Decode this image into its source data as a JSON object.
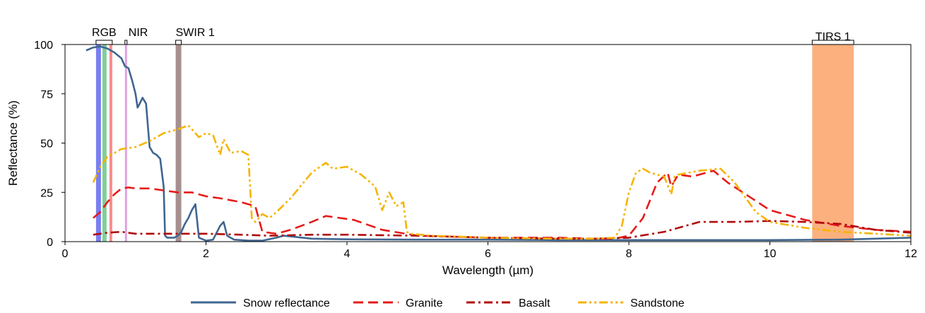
{
  "chart_data": {
    "type": "line",
    "xlabel": "Wavelength (µm)",
    "ylabel": "Reflectance (%)",
    "xlim": [
      0,
      12
    ],
    "ylim": [
      0,
      100
    ],
    "xticks": [
      0,
      2,
      4,
      6,
      8,
      10,
      12
    ],
    "yticks": [
      0,
      25,
      50,
      75,
      100
    ],
    "grid": false,
    "legend_position": "bottom",
    "bands": [
      {
        "name": "RGB",
        "range": [
          0.44,
          0.67
        ],
        "fills": [
          {
            "range": [
              0.44,
              0.51
            ],
            "color": "#7a7ef2"
          },
          {
            "range": [
              0.53,
              0.59
            ],
            "color": "#7fcf9a"
          },
          {
            "range": [
              0.63,
              0.67
            ],
            "color": "#f98a8a"
          }
        ]
      },
      {
        "name": "NIR",
        "range": [
          0.85,
          0.88
        ],
        "fills": [
          {
            "range": [
              0.85,
              0.88
            ],
            "color": "#e0a2e0"
          }
        ]
      },
      {
        "name": "SWIR 1",
        "range": [
          1.57,
          1.65
        ],
        "fills": [
          {
            "range": [
              1.57,
              1.65
            ],
            "color": "#a6908f"
          }
        ]
      },
      {
        "name": "TIRS 1",
        "range": [
          10.6,
          11.19
        ],
        "fills": [
          {
            "range": [
              10.6,
              11.19
            ],
            "color": "#fbb07e"
          }
        ]
      }
    ],
    "series": [
      {
        "name": "Snow reflectance",
        "color": "#3f6690",
        "dash": "solid",
        "x": [
          0.3,
          0.4,
          0.5,
          0.6,
          0.7,
          0.8,
          0.85,
          0.9,
          0.95,
          1.0,
          1.03,
          1.06,
          1.1,
          1.15,
          1.2,
          1.25,
          1.3,
          1.35,
          1.4,
          1.42,
          1.45,
          1.5,
          1.55,
          1.6,
          1.65,
          1.7,
          1.75,
          1.8,
          1.85,
          1.9,
          2.0,
          2.1,
          2.2,
          2.25,
          2.3,
          2.4,
          2.6,
          2.8,
          3.0,
          3.1,
          3.5,
          4,
          5,
          6,
          7,
          8,
          9,
          10,
          11,
          12
        ],
        "y": [
          97,
          98.5,
          99,
          98,
          96,
          93,
          89,
          88,
          82,
          75,
          68,
          70,
          73,
          70,
          48,
          45,
          44,
          42,
          28,
          3,
          2,
          2,
          2,
          3,
          5,
          9,
          12,
          16,
          19,
          2,
          0.5,
          1,
          8,
          10,
          3,
          1,
          0.5,
          0.5,
          2,
          3,
          1.5,
          1.2,
          1.0,
          1.0,
          0.8,
          0.8,
          0.8,
          0.8,
          1.0,
          2.0
        ]
      },
      {
        "name": "Granite",
        "color": "#e51b1b",
        "dash": "long-dash",
        "x": [
          0.4,
          0.5,
          0.6,
          0.7,
          0.8,
          0.9,
          1.0,
          1.2,
          1.4,
          1.6,
          1.8,
          2.0,
          2.2,
          2.5,
          2.7,
          2.8,
          3.0,
          3.2,
          3.5,
          3.7,
          3.9,
          4.1,
          4.5,
          5.0,
          6.0,
          7.0,
          7.5,
          7.8,
          8.0,
          8.2,
          8.4,
          8.55,
          8.6,
          8.7,
          8.9,
          9.2,
          9.4,
          9.7,
          10.0,
          10.5,
          11.0,
          11.5,
          12.0
        ],
        "y": [
          12,
          15,
          20,
          24,
          27,
          27.5,
          27,
          27,
          26,
          25,
          25,
          23,
          22,
          20,
          18,
          5,
          4,
          6,
          10,
          13,
          12,
          11,
          6,
          3,
          2,
          2,
          1.5,
          1.5,
          3,
          12,
          30,
          35,
          28,
          34,
          33,
          36,
          30,
          23,
          16,
          11,
          8,
          6,
          5
        ]
      },
      {
        "name": "Basalt",
        "color": "#b20b0b",
        "dash": "dash-dot",
        "x": [
          0.4,
          0.6,
          0.8,
          1.0,
          1.5,
          2.0,
          2.5,
          2.9,
          3.5,
          4.0,
          5.0,
          6.0,
          7.0,
          7.5,
          8.0,
          8.5,
          9.0,
          9.5,
          10.0,
          10.5,
          11.0,
          11.5,
          12.0
        ],
        "y": [
          3.5,
          4.5,
          5,
          4,
          4,
          4,
          3.5,
          3,
          3.5,
          3.5,
          3,
          2,
          1.5,
          1.5,
          2,
          5,
          10,
          10,
          10.5,
          10,
          9,
          6,
          4.5
        ]
      },
      {
        "name": "Sandstone",
        "color": "#f5b400",
        "dash": "dash-dot-dot",
        "x": [
          0.4,
          0.5,
          0.6,
          0.8,
          1.0,
          1.2,
          1.4,
          1.6,
          1.75,
          1.9,
          2.0,
          2.1,
          2.2,
          2.25,
          2.35,
          2.5,
          2.6,
          2.65,
          2.7,
          2.8,
          2.9,
          3.0,
          3.2,
          3.5,
          3.7,
          3.8,
          4.0,
          4.2,
          4.4,
          4.5,
          4.6,
          4.7,
          4.8,
          4.85,
          4.9,
          5.2,
          6.0,
          7.0,
          7.5,
          7.8,
          7.9,
          8.0,
          8.1,
          8.2,
          8.3,
          8.5,
          8.6,
          8.65,
          8.7,
          9.0,
          9.3,
          9.5,
          9.8,
          10.0,
          10.5,
          11.0,
          11.5,
          12.0
        ],
        "y": [
          30,
          38,
          43,
          47,
          48,
          51,
          55,
          57,
          59,
          53,
          55,
          54,
          44,
          52,
          45,
          46,
          44,
          12,
          10,
          14,
          12,
          15,
          22,
          35,
          40,
          37,
          38,
          34,
          28,
          16,
          25,
          18,
          20,
          5,
          4,
          3,
          2,
          1.5,
          1.5,
          2,
          8,
          25,
          35,
          37,
          35,
          33,
          24,
          33,
          34,
          36,
          37,
          30,
          15,
          10,
          7,
          5,
          4,
          3
        ]
      }
    ]
  }
}
